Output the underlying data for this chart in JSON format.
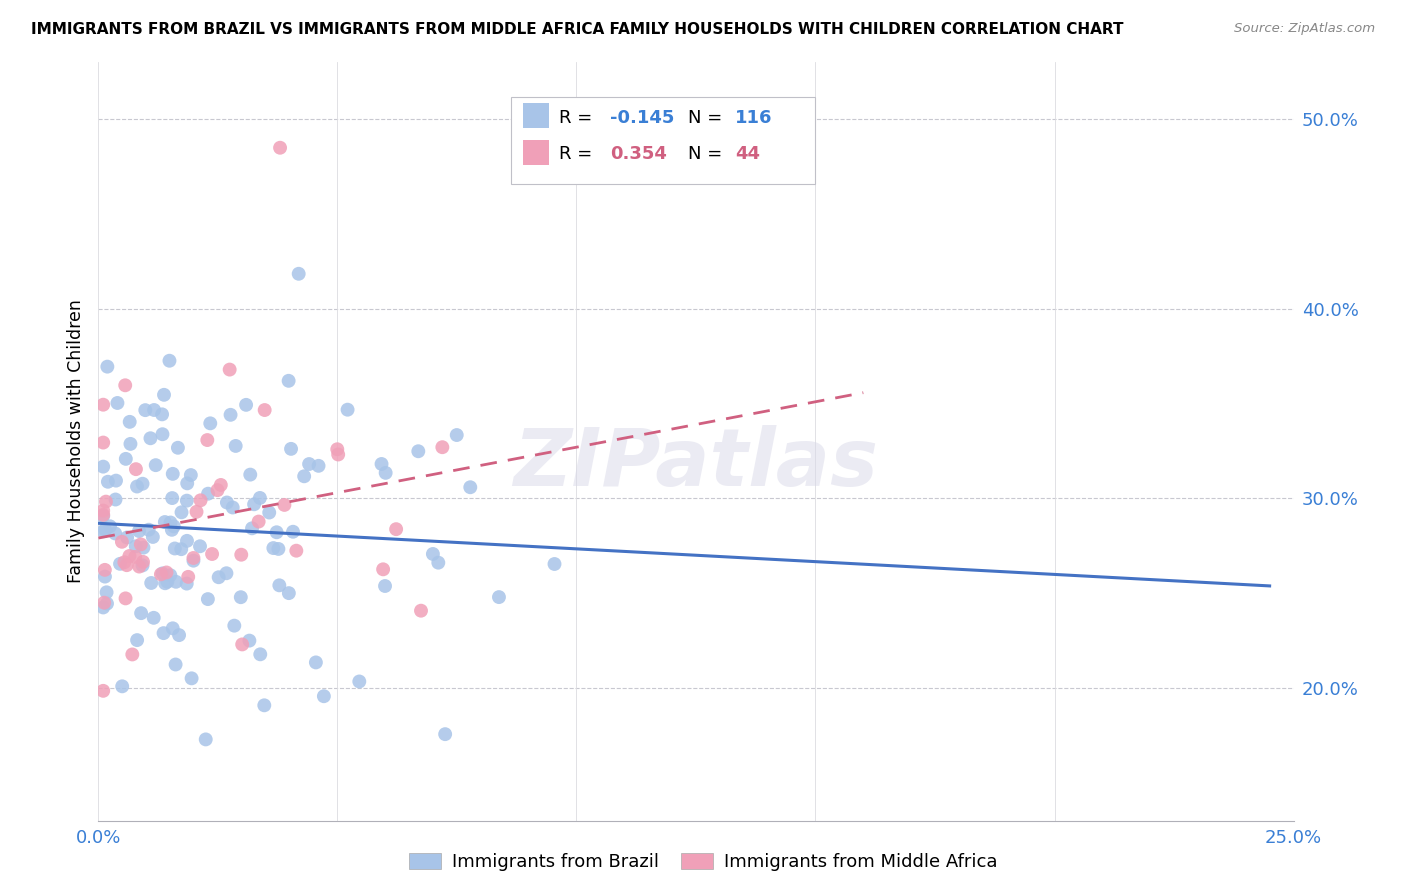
{
  "title": "IMMIGRANTS FROM BRAZIL VS IMMIGRANTS FROM MIDDLE AFRICA FAMILY HOUSEHOLDS WITH CHILDREN CORRELATION CHART",
  "source": "Source: ZipAtlas.com",
  "ylabel": "Family Households with Children",
  "brazil_color": "#a8c4e8",
  "brazil_line_color": "#4472c4",
  "middle_africa_color": "#f0a0b8",
  "middle_africa_line_color": "#d06080",
  "brazil_R": -0.145,
  "brazil_N": 116,
  "middle_africa_R": 0.354,
  "middle_africa_N": 44,
  "xlim": [
    0,
    0.25
  ],
  "ylim": [
    0.13,
    0.53
  ],
  "yticks": [
    0.2,
    0.3,
    0.4,
    0.5
  ],
  "ytick_labels": [
    "20.0%",
    "30.0%",
    "40.0%",
    "50.0%"
  ],
  "xtick_left": "0.0%",
  "xtick_right": "25.0%",
  "legend_entries": [
    {
      "R": "R = -0.145",
      "N": "N = 116",
      "color": "#a8c4e8"
    },
    {
      "R": "R =  0.354",
      "N": "N = 44",
      "color": "#f0a0b8"
    }
  ],
  "bottom_legend": [
    "Immigrants from Brazil",
    "Immigrants from Middle Africa"
  ],
  "watermark": "ZIPatlas"
}
